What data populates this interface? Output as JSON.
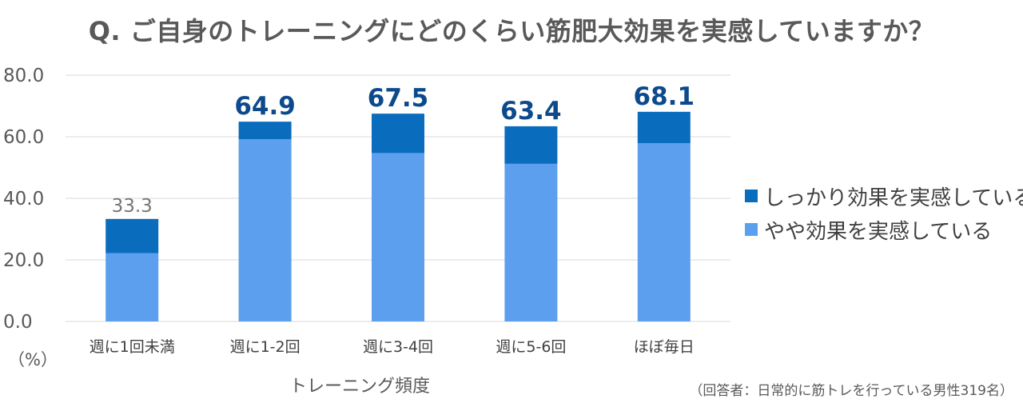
{
  "chart_data": {
    "type": "bar",
    "stacked": true,
    "title": "Q. ご自身のトレーニングにどのくらい筋肥大効果を実感していますか？",
    "categories": [
      "週に1回未満",
      "週に1-2回",
      "週に3-4回",
      "週に5-6回",
      "ほぼ毎日"
    ],
    "series": [
      {
        "name": "やや効果を実感している",
        "color": "#5b9fee",
        "values": [
          22.2,
          59.2,
          54.7,
          51.2,
          57.9
        ]
      },
      {
        "name": "しっかり効果を実感している",
        "color": "#0a6cbd",
        "values": [
          11.1,
          5.7,
          12.8,
          12.2,
          10.2
        ]
      }
    ],
    "totals": [
      "33.3",
      "64.9",
      "67.5",
      "63.4",
      "68.1"
    ],
    "total_emphasis": [
      false,
      true,
      true,
      true,
      true
    ],
    "ylim": [
      0,
      80
    ],
    "yticks": [
      "0.0",
      "20.0",
      "40.0",
      "60.0",
      "80.0"
    ],
    "ytick_values": [
      0,
      20,
      40,
      60,
      80
    ],
    "ylabel": "（%）",
    "xlabel": "トレーニング頻度",
    "legend_position": "right"
  },
  "legend": [
    {
      "label": "しっかり効果を実感している",
      "color": "#0a6cbd"
    },
    {
      "label": "やや効果を実感している",
      "color": "#5b9fee"
    }
  ],
  "note": "（回答者：日常的に筋トレを行っている男性319名）",
  "colors": {
    "dark": "#0a6cbd",
    "light": "#5b9fee",
    "total_emph": "#0c4a8c",
    "total_plain": "#767676",
    "grid": "#d9d9d9"
  }
}
